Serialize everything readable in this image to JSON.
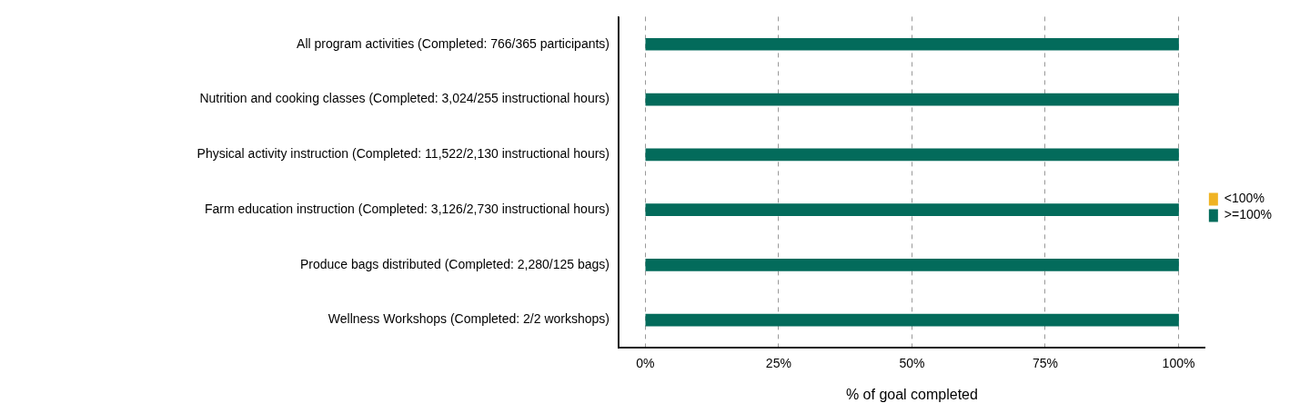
{
  "chart_data": {
    "type": "bar",
    "orientation": "horizontal",
    "xlabel": "% of goal completed",
    "categories": [
      "All program activities (Completed: 766/365 participants)",
      "Nutrition and cooking classes (Completed: 3,024/255 instructional hours)",
      "Physical activity instruction (Completed: 11,522/2,130 instructional hours)",
      "Farm education instruction (Completed: 3,126/2,730 instructional hours)",
      "Produce bags distributed (Completed: 2,280/125 bags)",
      "Wellness Workshops (Completed: 2/2 workshops)"
    ],
    "series": [
      {
        "name": "<100%",
        "color": "#f0b323",
        "values": [
          null,
          null,
          null,
          null,
          null,
          null
        ]
      },
      {
        "name": ">=100%",
        "color": "#036b5b",
        "values": [
          100,
          100,
          100,
          100,
          100,
          100
        ]
      }
    ],
    "xlim": [
      -5,
      105
    ],
    "xticks": [
      {
        "value": 0,
        "label": "0%"
      },
      {
        "value": 25,
        "label": "25%"
      },
      {
        "value": 50,
        "label": "50%"
      },
      {
        "value": 75,
        "label": "75%"
      },
      {
        "value": 100,
        "label": "100%"
      }
    ],
    "grid": "x",
    "legend": "right"
  }
}
